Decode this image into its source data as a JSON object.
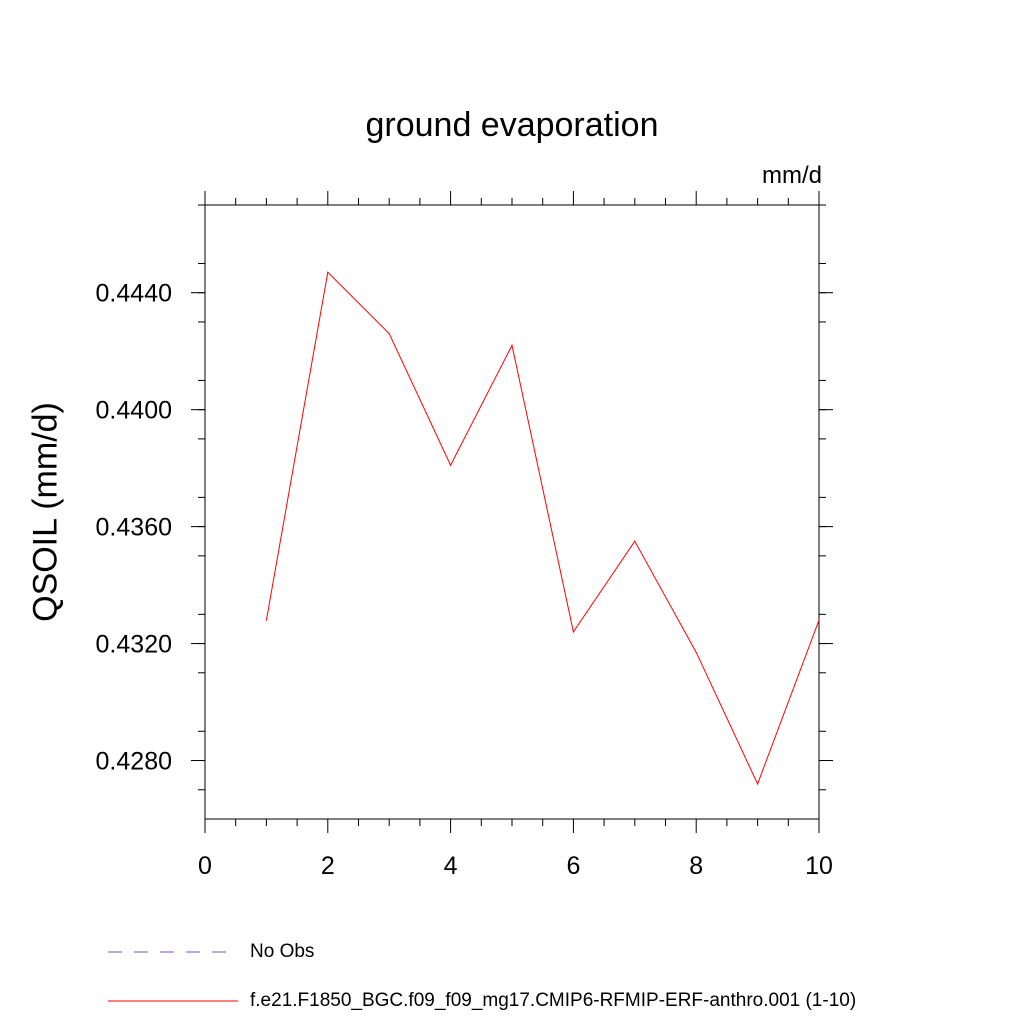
{
  "chart_data": {
    "type": "line",
    "title": "ground evaporation",
    "units_label": "mm/d",
    "ylabel": "QSOIL  (mm/d)",
    "xlabel": "",
    "xlim": [
      0,
      10
    ],
    "ylim": [
      0.426,
      0.447
    ],
    "x_ticks": [
      0,
      2,
      4,
      6,
      8,
      10
    ],
    "x_tick_labels": [
      "0",
      "2",
      "4",
      "6",
      "8",
      "10"
    ],
    "y_ticks": [
      0.428,
      0.432,
      0.436,
      0.44,
      0.444
    ],
    "y_tick_labels": [
      "0.4280",
      "0.4320",
      "0.4360",
      "0.4400",
      "0.4440"
    ],
    "grid": false,
    "legend_position": "bottom",
    "series": [
      {
        "name": "f.e21.F1850_BGC.f09_f09_mg17.CMIP6-RFMIP-ERF-anthro.001 (1-10)",
        "color": "#ff0000",
        "style": "solid",
        "x": [
          1,
          2,
          3,
          4,
          5,
          6,
          7,
          8,
          9,
          10
        ],
        "y": [
          0.4328,
          0.4447,
          0.4426,
          0.4381,
          0.4422,
          0.4324,
          0.4355,
          0.4317,
          0.4272,
          0.4328
        ]
      }
    ],
    "legend": [
      {
        "label": "No Obs",
        "color": "#6a5acd",
        "style": "dashed"
      },
      {
        "label": "f.e21.F1850_BGC.f09_f09_mg17.CMIP6-RFMIP-ERF-anthro.001 (1-10)",
        "color": "#ff0000",
        "style": "solid"
      }
    ]
  }
}
